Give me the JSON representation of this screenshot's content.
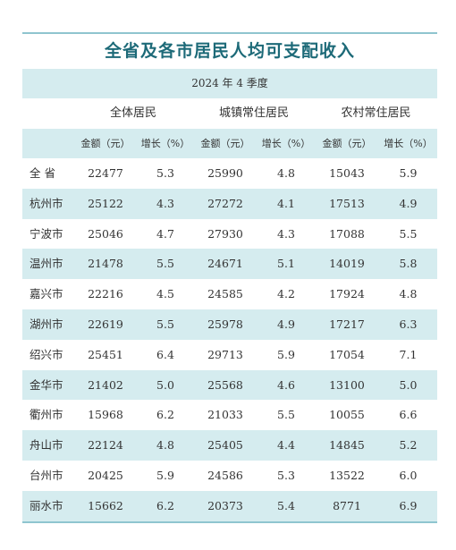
{
  "title": "全省及各市居民人均可支配收入",
  "period": "2024 年 4 季度",
  "groups": [
    "全体居民",
    "城镇常住居民",
    "农村常住居民"
  ],
  "subheaders": [
    "金额（元）",
    "增长（%）",
    "金额（元）",
    "增长（%）",
    "金额（元）",
    "增长（%）"
  ],
  "rows": [
    {
      "name": "全 省",
      "v": [
        "22477",
        "5.3",
        "25990",
        "4.8",
        "15043",
        "5.9"
      ]
    },
    {
      "name": "杭州市",
      "v": [
        "25122",
        "4.3",
        "27272",
        "4.1",
        "17513",
        "4.9"
      ]
    },
    {
      "name": "宁波市",
      "v": [
        "25046",
        "4.7",
        "27930",
        "4.3",
        "17088",
        "5.5"
      ]
    },
    {
      "name": "温州市",
      "v": [
        "21478",
        "5.5",
        "24671",
        "5.1",
        "14019",
        "5.8"
      ]
    },
    {
      "name": "嘉兴市",
      "v": [
        "22216",
        "4.5",
        "24585",
        "4.2",
        "17924",
        "4.8"
      ]
    },
    {
      "name": "湖州市",
      "v": [
        "22619",
        "5.5",
        "25978",
        "4.9",
        "17217",
        "6.3"
      ]
    },
    {
      "name": "绍兴市",
      "v": [
        "25451",
        "6.4",
        "29713",
        "5.9",
        "17054",
        "7.1"
      ]
    },
    {
      "name": "金华市",
      "v": [
        "21402",
        "5.0",
        "25568",
        "4.6",
        "13100",
        "5.0"
      ]
    },
    {
      "name": "衢州市",
      "v": [
        "15968",
        "6.2",
        "21033",
        "5.5",
        "10055",
        "6.6"
      ]
    },
    {
      "name": "舟山市",
      "v": [
        "22124",
        "4.8",
        "25405",
        "4.4",
        "14845",
        "5.2"
      ]
    },
    {
      "name": "台州市",
      "v": [
        "20425",
        "5.9",
        "24586",
        "5.3",
        "13522",
        "6.0"
      ]
    },
    {
      "name": "丽水市",
      "v": [
        "15662",
        "6.2",
        "20373",
        "5.4",
        "8771",
        "6.9"
      ]
    }
  ],
  "colors": {
    "accent": "#1d6a78",
    "band": "#d5ecef",
    "rule": "#8fc5cf"
  }
}
